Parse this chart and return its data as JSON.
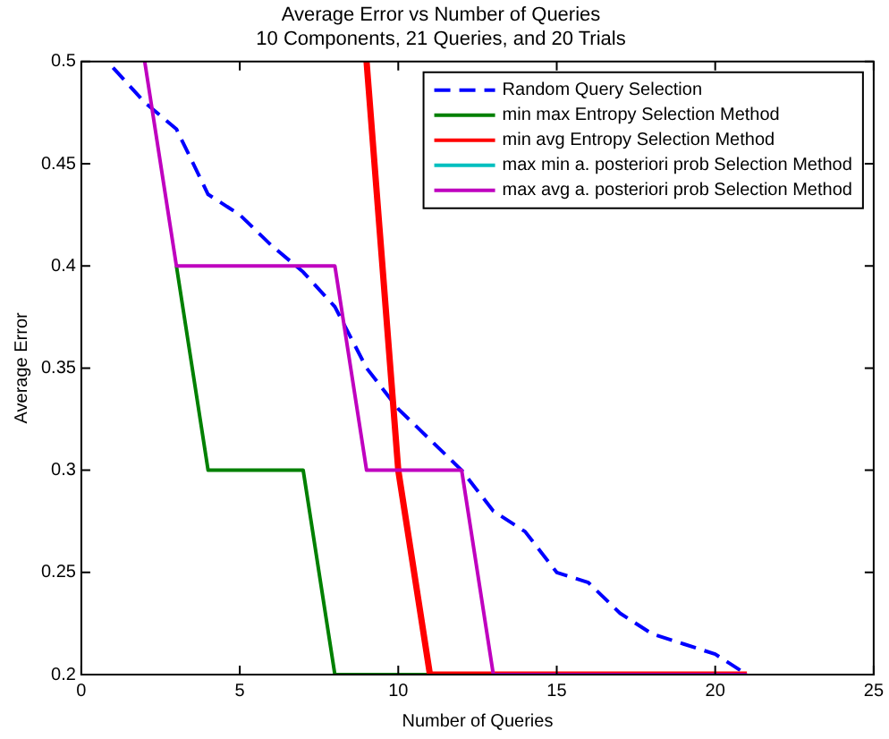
{
  "chart_data": {
    "type": "line",
    "title": "Average Error vs Number of Queries",
    "subtitle": "10 Components, 21 Queries, and 20 Trials",
    "xlabel": "Number of Queries",
    "ylabel": "Average Error",
    "xlim": [
      0,
      25
    ],
    "xticks": [
      0,
      5,
      10,
      15,
      20,
      25
    ],
    "ylim": [
      0.2,
      0.5
    ],
    "yticks": [
      0.2,
      0.25,
      0.3,
      0.35,
      0.4,
      0.45,
      0.5
    ],
    "grid": false,
    "legend": "top right",
    "marker": "none",
    "series": [
      {
        "name": "Random Query Selection",
        "color": "#0000ff",
        "line_style": "dashed",
        "x": [
          1,
          2,
          3,
          4,
          5,
          6,
          7,
          8,
          9,
          10,
          11,
          12,
          13,
          14,
          15,
          16,
          17,
          18,
          19,
          20,
          21
        ],
        "values": [
          0.497,
          0.48,
          0.467,
          0.435,
          0.425,
          0.41,
          0.397,
          0.38,
          0.35,
          0.33,
          0.315,
          0.3,
          0.28,
          0.27,
          0.25,
          0.245,
          0.23,
          0.22,
          0.215,
          0.21,
          0.2
        ]
      },
      {
        "name": "min max Entropy Selection Method",
        "color": "#008000",
        "line_style": "solid",
        "x": [
          3,
          4,
          5,
          6,
          7,
          8,
          9,
          10,
          11
        ],
        "values": [
          0.4,
          0.3,
          0.3,
          0.3,
          0.3,
          0.2,
          0.2,
          0.2,
          0.2
        ]
      },
      {
        "name": "min avg Entropy Selection Method",
        "color": "#ff0000",
        "line_style": "solid",
        "x": [
          9,
          10,
          11,
          12,
          13,
          14,
          15,
          16,
          17,
          18,
          19,
          20,
          21
        ],
        "values": [
          0.5,
          0.3,
          0.2,
          0.2,
          0.2,
          0.2,
          0.2,
          0.2,
          0.2,
          0.2,
          0.2,
          0.2,
          0.2
        ]
      },
      {
        "name": "max min a. posteriori prob Selection Method",
        "color": "#00bfbf",
        "line_style": "solid",
        "values": [
          null
        ]
      },
      {
        "name": "max avg a. posteriori prob Selection Method",
        "color": "#bf00bf",
        "line_style": "solid",
        "x": [
          2,
          3,
          4,
          5,
          6,
          7,
          8,
          9,
          10,
          11,
          12,
          13,
          14,
          15,
          16,
          17,
          18,
          19,
          20,
          21
        ],
        "values": [
          0.5,
          0.4,
          0.4,
          0.4,
          0.4,
          0.4,
          0.4,
          0.3,
          0.3,
          0.3,
          0.3,
          0.2,
          0.2,
          0.2,
          0.2,
          0.2,
          0.2,
          0.2,
          0.2,
          0.2
        ]
      }
    ]
  }
}
